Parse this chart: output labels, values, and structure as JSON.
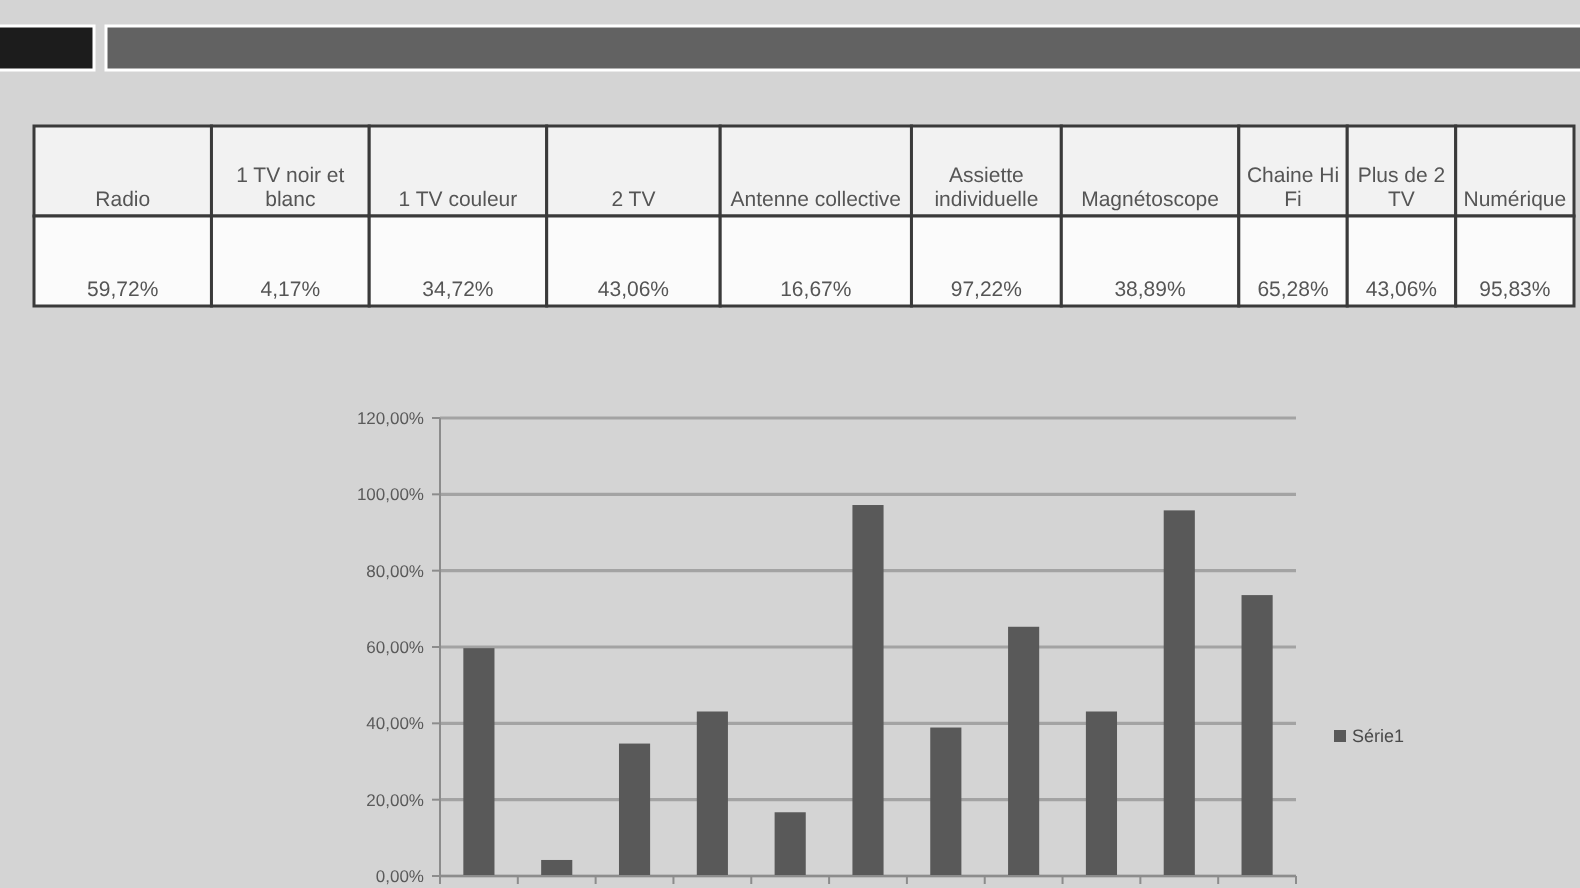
{
  "chart_data": [
    {
      "type": "other",
      "categories": [
        "Radio",
        "1 TV noir et blanc",
        "1 TV couleur",
        "2 TV",
        "Antenne collective",
        "Assiette individuelle",
        "Magnétoscope",
        "Chaine Hi Fi",
        "Plus de 2 TV",
        "Numérique"
      ],
      "value_labels": [
        "59,72%",
        "4,17%",
        "34,72%",
        "43,06%",
        "16,67%",
        "97,22%",
        "38,89%",
        "65,28%",
        "43,06%",
        "95,83%"
      ]
    },
    {
      "type": "bar",
      "categories": [
        null,
        null,
        null,
        null,
        null,
        null,
        null,
        null,
        null,
        null,
        null
      ],
      "series": [
        {
          "name": "Série1",
          "color": "#595959",
          "values": [
            59.7,
            4.2,
            34.7,
            43.1,
            16.7,
            97.2,
            38.9,
            65.3,
            43.1,
            95.8,
            73.6
          ]
        }
      ],
      "ylim": [
        0,
        120
      ],
      "yticks": [
        {
          "value": 0,
          "label": "0,00%"
        },
        {
          "value": 20,
          "label": "20,00%"
        },
        {
          "value": 40,
          "label": "40,00%"
        },
        {
          "value": 60,
          "label": "60,00%"
        },
        {
          "value": 80,
          "label": "80,00%"
        },
        {
          "value": 100,
          "label": "100,00%"
        },
        {
          "value": 120,
          "label": "120,00%"
        }
      ],
      "grid": "y",
      "legend": "right",
      "tick_labels": "y"
    }
  ]
}
